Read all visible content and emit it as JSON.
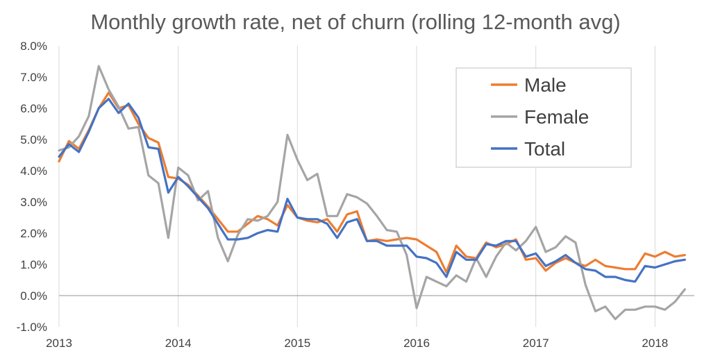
{
  "chart_data": {
    "type": "line",
    "title": "Monthly growth rate, net of churn (rolling 12-month avg)",
    "xlabel": "",
    "ylabel": "",
    "ylim": [
      -1.0,
      8.0
    ],
    "xlim": [
      2013.0,
      2018.33
    ],
    "y_unit": "%",
    "grid": "vertical gridlines at year ticks",
    "legend_position": "top-right",
    "y_ticks": [
      "-1.0%",
      "0.0%",
      "1.0%",
      "2.0%",
      "3.0%",
      "4.0%",
      "5.0%",
      "6.0%",
      "7.0%",
      "8.0%"
    ],
    "x_ticks": [
      "2013",
      "2014",
      "2015",
      "2016",
      "2017",
      "2018"
    ],
    "start": "2013-01",
    "series": [
      {
        "name": "Male",
        "color": "#ed7d31",
        "values": [
          4.3,
          4.95,
          4.7,
          5.3,
          6.0,
          6.5,
          6.0,
          6.1,
          5.5,
          5.05,
          4.9,
          3.8,
          3.75,
          3.55,
          3.2,
          2.85,
          2.45,
          2.05,
          2.05,
          2.3,
          2.55,
          2.45,
          2.25,
          2.9,
          2.5,
          2.4,
          2.35,
          2.45,
          2.05,
          2.6,
          2.7,
          1.75,
          1.8,
          1.75,
          1.8,
          1.85,
          1.8,
          1.6,
          1.4,
          0.75,
          1.6,
          1.25,
          1.2,
          1.7,
          1.55,
          1.65,
          1.8,
          1.15,
          1.2,
          0.8,
          1.05,
          1.2,
          1.05,
          0.95,
          1.15,
          0.95,
          0.9,
          0.85,
          0.85,
          1.35,
          1.25,
          1.4,
          1.25,
          1.3
        ]
      },
      {
        "name": "Female",
        "color": "#a5a5a5",
        "values": [
          4.65,
          4.75,
          5.1,
          5.75,
          7.35,
          6.6,
          6.05,
          5.35,
          5.4,
          3.85,
          3.6,
          1.85,
          4.1,
          3.85,
          3.05,
          3.35,
          1.85,
          1.1,
          1.95,
          2.45,
          2.4,
          2.55,
          3.0,
          5.15,
          4.35,
          3.7,
          3.9,
          2.55,
          2.55,
          3.25,
          3.15,
          2.95,
          2.55,
          2.1,
          2.05,
          1.3,
          -0.4,
          0.6,
          0.45,
          0.3,
          0.65,
          0.45,
          1.2,
          0.6,
          1.25,
          1.7,
          1.45,
          1.75,
          2.2,
          1.4,
          1.55,
          1.9,
          1.7,
          0.35,
          -0.5,
          -0.35,
          -0.75,
          -0.45,
          -0.45,
          -0.35,
          -0.35,
          -0.45,
          -0.2,
          0.2
        ]
      },
      {
        "name": "Total",
        "color": "#4472c4",
        "values": [
          4.45,
          4.85,
          4.6,
          5.25,
          6.0,
          6.3,
          5.85,
          6.15,
          5.7,
          4.75,
          4.7,
          3.3,
          3.8,
          3.5,
          3.15,
          2.8,
          2.3,
          1.8,
          1.8,
          1.85,
          2.0,
          2.1,
          2.05,
          3.1,
          2.5,
          2.45,
          2.45,
          2.3,
          1.85,
          2.35,
          2.45,
          1.75,
          1.75,
          1.6,
          1.6,
          1.6,
          1.25,
          1.2,
          1.05,
          0.6,
          1.4,
          1.15,
          1.15,
          1.65,
          1.6,
          1.75,
          1.75,
          1.25,
          1.35,
          0.95,
          1.1,
          1.3,
          1.05,
          0.85,
          0.8,
          0.6,
          0.6,
          0.5,
          0.45,
          0.95,
          0.9,
          1.0,
          1.1,
          1.15
        ]
      }
    ]
  }
}
